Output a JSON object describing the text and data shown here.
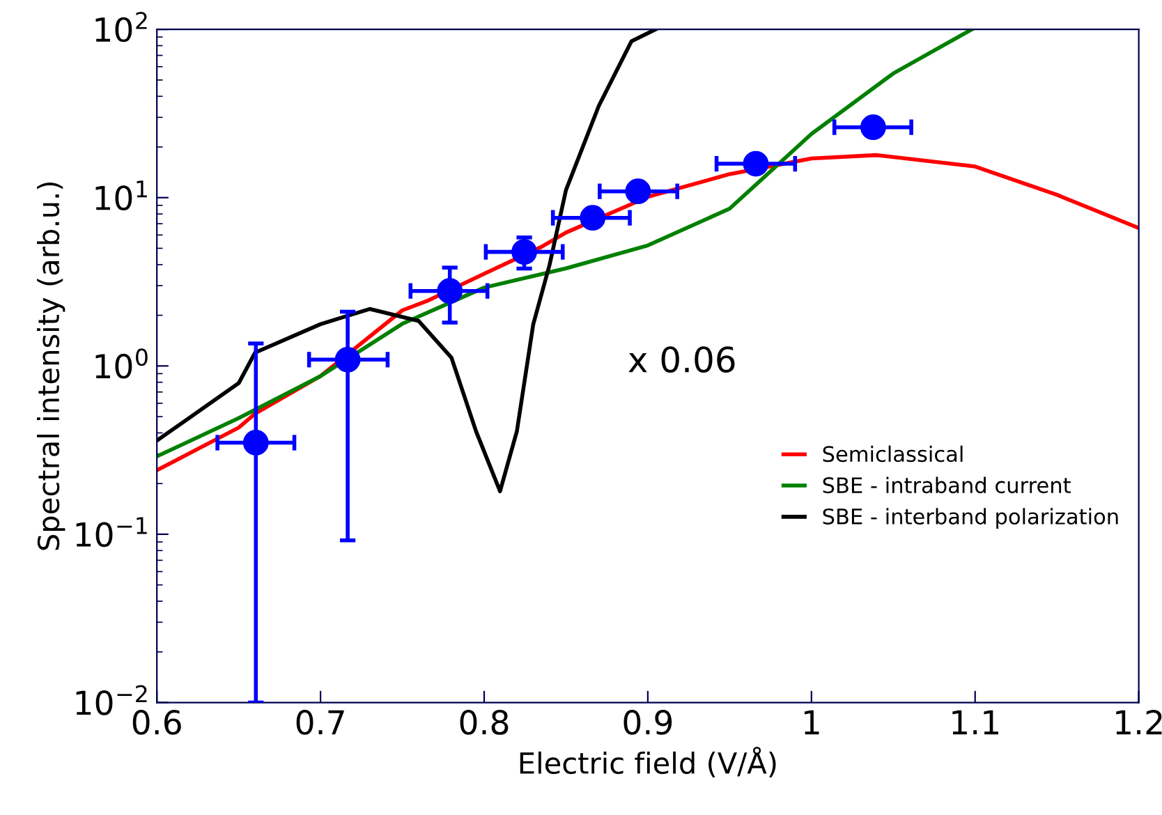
{
  "chart_data": {
    "type": "line",
    "xlabel": "Electric field (V/Å)",
    "ylabel": "Spectral intensity (arb.u.)",
    "log": "y",
    "xlim": [
      0.6,
      1.2
    ],
    "ylim": [
      0.01,
      100
    ],
    "xticks": [
      0.6,
      0.7,
      0.8,
      0.9,
      1,
      1.1,
      1.2
    ],
    "yticks": [
      {
        "value": 0.01,
        "label": "10$^{−2}$"
      },
      {
        "value": 0.1,
        "label": "10$^{−1}$"
      },
      {
        "value": 1,
        "label": "10$^{0}$"
      },
      {
        "value": 10,
        "label": "10$^{1}$"
      },
      {
        "value": 100,
        "label": "10$^{2}$"
      }
    ],
    "legend": "center right",
    "grid": false,
    "annotations": [
      "x 0.06"
    ],
    "series": [
      {
        "name": "Semiclassical",
        "color": "#ff0000",
        "x": [
          0.6,
          0.65,
          0.66,
          0.7,
          0.75,
          0.765,
          0.8,
          0.835,
          0.85,
          0.9,
          0.95,
          1.0,
          1.04,
          1.1,
          1.15,
          1.2
        ],
        "values": [
          0.24,
          0.43,
          0.52,
          0.87,
          2.14,
          2.43,
          3.53,
          5.1,
          6.2,
          10.1,
          13.8,
          17.1,
          17.9,
          15.3,
          10.4,
          6.6
        ]
      },
      {
        "name": "SBE - intraband current",
        "color": "#008000",
        "x": [
          0.6,
          0.65,
          0.7,
          0.75,
          0.8,
          0.85,
          0.9,
          0.95,
          1.0,
          1.05,
          1.098
        ],
        "values": [
          0.29,
          0.49,
          0.87,
          1.78,
          2.92,
          3.8,
          5.2,
          8.6,
          23.9,
          54.7,
          100
        ]
      },
      {
        "name": "SBE - interband polarization",
        "color": "#000000",
        "x": [
          0.6,
          0.65,
          0.66,
          0.7,
          0.73,
          0.76,
          0.78,
          0.795,
          0.8097,
          0.82,
          0.83,
          0.84,
          0.85,
          0.87,
          0.89,
          0.9047
        ],
        "values": [
          0.36,
          0.79,
          1.2,
          1.77,
          2.18,
          1.85,
          1.12,
          0.41,
          0.18,
          0.41,
          1.77,
          4.0,
          11.1,
          35,
          85,
          100
        ]
      },
      {
        "type": "scatter",
        "color": "#0000ff",
        "marker": "circle",
        "x": [
          0.6605,
          0.7166,
          0.779,
          0.8245,
          0.8663,
          0.894,
          0.966,
          1.0377
        ],
        "values": [
          0.35,
          1.09,
          2.79,
          4.76,
          7.59,
          10.9,
          15.9,
          26.2
        ],
        "errors": [
          [
            0.01,
            1.36
          ],
          [
            0.092,
            2.1
          ],
          [
            1.81,
            3.84
          ],
          [
            3.79,
            5.8
          ],
          null,
          null,
          null,
          null
        ],
        "xerrors": [
          [
            0.637,
            0.684
          ],
          [
            0.693,
            0.741
          ],
          [
            0.755,
            0.802
          ],
          [
            0.801,
            0.848
          ],
          [
            0.842,
            0.889
          ],
          [
            0.8706,
            0.918
          ],
          [
            0.942,
            0.99
          ],
          [
            1.014,
            1.061
          ]
        ]
      }
    ]
  }
}
